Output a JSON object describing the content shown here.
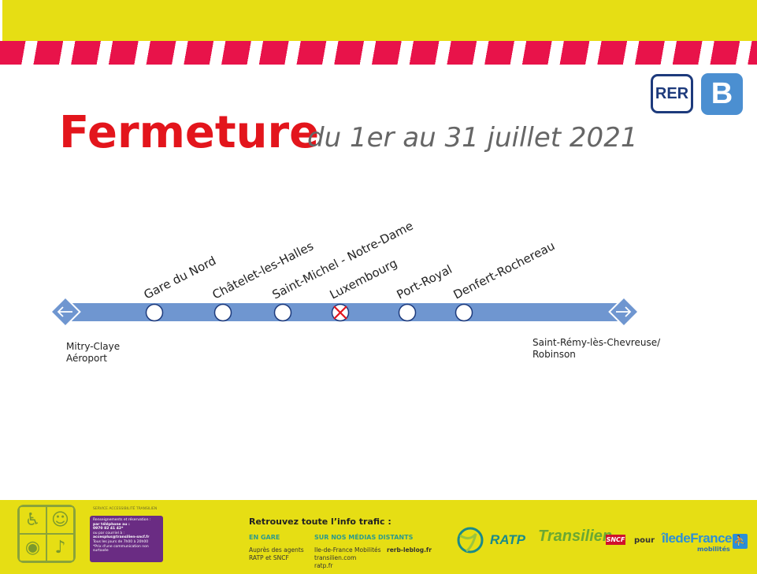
{
  "header": {
    "network_badge": "RER",
    "line_badge": "B",
    "title": "Fermeture",
    "subtitle": "du 1er au 31 juillet 2021"
  },
  "line_map": {
    "line_color": "#6f96d0",
    "closed_marker_color": "#e3151c",
    "stations": [
      {
        "name": "Gare du Nord",
        "status": "open"
      },
      {
        "name": "Châtelet-les-Halles",
        "status": "open"
      },
      {
        "name": "Saint-Michel - Notre-Dame",
        "status": "open"
      },
      {
        "name": "Luxembourg",
        "status": "closed"
      },
      {
        "name": "Port-Royal",
        "status": "open"
      },
      {
        "name": "Denfert-Rochereau",
        "status": "open"
      }
    ],
    "terminus_left": [
      "Mitry-Claye",
      "Aéroport"
    ],
    "terminus_right": [
      "Saint-Rémy-lès-Chevreuse/",
      "Robinson"
    ]
  },
  "footer": {
    "service_title": "SERVICE ACCESSIBILITÉ TRANSILIEN",
    "service_lines": [
      "Renseignements et réservation :",
      "par téléphone au :",
      "0970 82 41 42*",
      "ou par courriel à :",
      "accesplus@transilien-sncf.fr",
      "Tous les jours de 7h00 à 20h00",
      "*Prix d'une communication non surtaxée"
    ],
    "info_title": "Retrouvez toute l’info trafic :",
    "col_gare_head": "EN GARE",
    "col_gare_text": [
      "Auprès des agents",
      "RATP et SNCF"
    ],
    "col_media_head": "SUR NOS MÉDIAS DISTANTS",
    "col_media_text": [
      "Ile-de-France Mobilités",
      "transilien.com",
      "ratp.fr"
    ],
    "col_media_blog": "rerb-leblog.fr",
    "ratp_label": "RATP",
    "transilien_label": "Transilien",
    "sncf_label": "SNCF",
    "pour_label": "pour",
    "idf_label": "îledeFrance",
    "idf_sub": "mobilités"
  },
  "colors": {
    "band_yellow": "#e6de14",
    "stripe_red": "#e8134a",
    "title_red": "#e3151c",
    "rer_blue": "#1d3a7c",
    "line_b_blue": "#4b8fd1"
  }
}
